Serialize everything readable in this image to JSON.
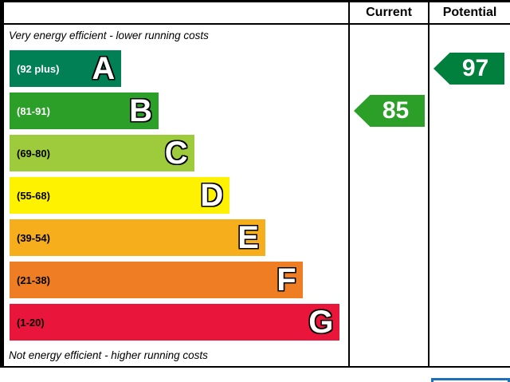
{
  "header": {
    "current_label": "Current",
    "potential_label": "Potential"
  },
  "captions": {
    "top": "Very energy efficient - lower running costs",
    "bottom": "Not energy efficient - higher running costs"
  },
  "bands": [
    {
      "letter": "A",
      "range": "(92 plus)",
      "color": "#008054",
      "width_pct": 33,
      "text_color": "#ffffff"
    },
    {
      "letter": "B",
      "range": "(81-91)",
      "color": "#2c9f29",
      "width_pct": 44,
      "text_color": "#ffffff"
    },
    {
      "letter": "C",
      "range": "(69-80)",
      "color": "#9dcb3c",
      "width_pct": 54.5,
      "text_color": "#000000"
    },
    {
      "letter": "D",
      "range": "(55-68)",
      "color": "#fff200",
      "width_pct": 65,
      "text_color": "#000000"
    },
    {
      "letter": "E",
      "range": "(39-54)",
      "color": "#f7ae1d",
      "width_pct": 75.5,
      "text_color": "#000000"
    },
    {
      "letter": "F",
      "range": "(21-38)",
      "color": "#ef7d23",
      "width_pct": 86.5,
      "text_color": "#000000"
    },
    {
      "letter": "G",
      "range": "(1-20)",
      "color": "#e9153b",
      "width_pct": 97.5,
      "text_color": "#000000"
    }
  ],
  "current": {
    "value": "85",
    "color": "#2c9f29",
    "band_index": 1
  },
  "potential": {
    "value": "97",
    "color": "#007f3d",
    "band_index": 0
  },
  "accent_colors": {
    "border": "#000000",
    "eu_box_blue": "#1d70b8"
  },
  "chart_data": {
    "type": "bar",
    "categories": [
      "A",
      "B",
      "C",
      "D",
      "E",
      "F",
      "G"
    ],
    "ranges": [
      "92 plus",
      "81-91",
      "69-80",
      "55-68",
      "39-54",
      "21-38",
      "1-20"
    ],
    "band_colors": [
      "#008054",
      "#2c9f29",
      "#9dcb3c",
      "#fff200",
      "#f7ae1d",
      "#ef7d23",
      "#e9153b"
    ],
    "bar_relative_lengths": [
      33,
      44,
      54.5,
      65,
      75.5,
      86.5,
      97.5
    ],
    "columns": [
      "Current",
      "Potential"
    ],
    "current_value": 85,
    "current_band": "B",
    "potential_value": 97,
    "potential_band": "A",
    "top_caption": "Very energy efficient - lower running costs",
    "bottom_caption": "Not energy efficient - higher running costs",
    "legend_position": "none",
    "grid": false
  }
}
